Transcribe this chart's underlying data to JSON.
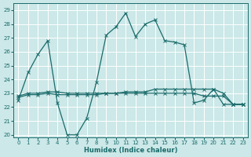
{
  "xlabel": "Humidex (Indice chaleur)",
  "xlim": [
    -0.5,
    23.5
  ],
  "ylim": [
    19.8,
    29.5
  ],
  "yticks": [
    20,
    21,
    22,
    23,
    24,
    25,
    26,
    27,
    28,
    29
  ],
  "xticks": [
    0,
    1,
    2,
    3,
    4,
    5,
    6,
    7,
    8,
    9,
    10,
    11,
    12,
    13,
    14,
    15,
    16,
    17,
    18,
    19,
    20,
    21,
    22,
    23
  ],
  "background_color": "#cce8e8",
  "grid_color": "#ffffff",
  "line_color": "#1a6b6b",
  "main_x": [
    0,
    1,
    2,
    3,
    4,
    5,
    6,
    7,
    8,
    9,
    10,
    11,
    12,
    13,
    14,
    15,
    16,
    17,
    18,
    19,
    20,
    21,
    22,
    23
  ],
  "main_y": [
    22.5,
    24.5,
    25.8,
    26.8,
    22.3,
    20.0,
    20.0,
    21.2,
    23.8,
    27.2,
    27.8,
    28.8,
    27.1,
    28.0,
    28.3,
    26.8,
    26.7,
    26.5,
    22.3,
    22.5,
    23.3,
    23.0,
    22.2,
    22.2
  ],
  "flat1_x": [
    0,
    1,
    2,
    3,
    4,
    5,
    6,
    7,
    8,
    9,
    10,
    11,
    12,
    13,
    14,
    15,
    16,
    17,
    18,
    19,
    20,
    21,
    22,
    23
  ],
  "flat1_y": [
    22.8,
    23.0,
    23.0,
    23.1,
    23.1,
    23.0,
    23.0,
    23.0,
    23.0,
    23.0,
    23.0,
    23.1,
    23.1,
    23.1,
    23.3,
    23.3,
    23.3,
    23.3,
    23.3,
    23.3,
    23.3,
    22.2,
    22.2,
    22.2
  ],
  "flat2_x": [
    0,
    1,
    2,
    3,
    4,
    5,
    6,
    7,
    8,
    9,
    10,
    11,
    12,
    13,
    14,
    15,
    16,
    17,
    18,
    19,
    20,
    21,
    22,
    23
  ],
  "flat2_y": [
    22.7,
    22.9,
    22.9,
    23.0,
    22.9,
    22.9,
    22.9,
    22.9,
    22.9,
    23.0,
    23.0,
    23.0,
    23.0,
    23.0,
    23.0,
    23.0,
    23.0,
    23.0,
    23.0,
    22.8,
    22.8,
    22.8,
    22.2,
    22.2
  ]
}
